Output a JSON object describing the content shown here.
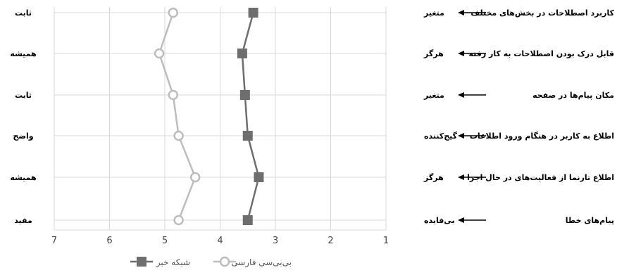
{
  "chart_data": {
    "type": "line",
    "orientation": "horizontal-value-axis",
    "x_axis": {
      "ticks": [
        7,
        6,
        5,
        4,
        3,
        2,
        1
      ],
      "range": [
        7,
        1
      ],
      "reversed": true
    },
    "grid": true,
    "legend_position": "bottom-left",
    "rows": [
      {
        "feature": "کاربرد اصطلاحات در بخش‌های مختلف",
        "right_anchor": "متغیر",
        "left_anchor": "ثابت"
      },
      {
        "feature": "قابل درک بودن اصطلاحات به کار رفته",
        "right_anchor": "هرگز",
        "left_anchor": "همیشه"
      },
      {
        "feature": "مکان پیام‌ها در صفحه",
        "right_anchor": "متغیر",
        "left_anchor": "ثابت"
      },
      {
        "feature": "اطلاع به کاربر در هنگام ورود اطلاعات",
        "right_anchor": "گیج‌کننده",
        "left_anchor": "واضح"
      },
      {
        "feature": "اطلاع تارنما از فعالیت‌های در حال اجرا",
        "right_anchor": "هرگز",
        "left_anchor": "همیشه"
      },
      {
        "feature": "پیام‌های خطا",
        "right_anchor": "بی‌فایده",
        "left_anchor": "مفید"
      }
    ],
    "series": [
      {
        "name": "شبکه خبر",
        "marker": "square",
        "color": "#6e6e6e",
        "values": [
          3.4,
          3.6,
          3.55,
          3.5,
          3.3,
          3.5
        ]
      },
      {
        "name": "بی‌بی‌سی فارسی",
        "marker": "circle",
        "color": "#bdbdbd",
        "values": [
          4.85,
          5.1,
          4.85,
          4.75,
          4.45,
          4.75
        ]
      }
    ]
  }
}
